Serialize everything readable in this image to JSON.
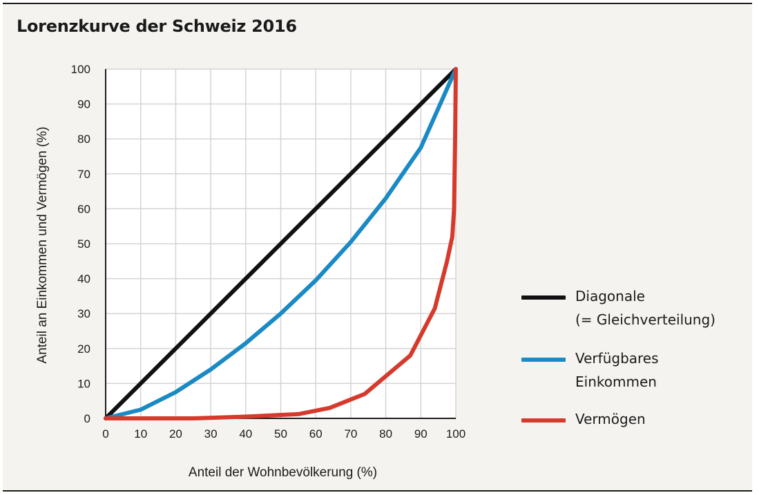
{
  "title": "Lorenzkurve der Schweiz 2016",
  "chart_data": {
    "type": "line",
    "xlabel": "Anteil der Wohnbevölkerung (%)",
    "ylabel": "Anteil an Einkommen und Vermögen (%)",
    "xlim": [
      0,
      100
    ],
    "ylim": [
      0,
      100
    ],
    "x_ticks": [
      "0",
      "10",
      "20",
      "30",
      "40",
      "50",
      "60",
      "70",
      "80",
      "90",
      "100"
    ],
    "y_ticks": [
      "0",
      "10",
      "20",
      "30",
      "40",
      "50",
      "60",
      "70",
      "80",
      "90",
      "100"
    ],
    "grid": true,
    "legend_position": "right",
    "series": [
      {
        "name": "Diagonale (= Gleichverteilung)",
        "name_lines": [
          "Diagonale",
          "(= Gleichverteilung)"
        ],
        "color": "#111111",
        "points": [
          [
            0,
            0
          ],
          [
            100,
            100
          ]
        ]
      },
      {
        "name": "Verfügbares Einkommen",
        "name_lines": [
          "Verfügbares",
          "Einkommen"
        ],
        "color": "#1a8ac4",
        "points": [
          [
            0,
            0
          ],
          [
            10,
            2.5
          ],
          [
            20,
            7.5
          ],
          [
            30,
            14
          ],
          [
            40,
            21.5
          ],
          [
            50,
            30
          ],
          [
            60,
            39.5
          ],
          [
            70,
            50.5
          ],
          [
            80,
            63
          ],
          [
            90,
            77.5
          ],
          [
            100,
            100
          ]
        ]
      },
      {
        "name": "Vermögen",
        "name_lines": [
          "Vermögen"
        ],
        "color": "#d63a2c",
        "points": [
          [
            0,
            0
          ],
          [
            25,
            0
          ],
          [
            40,
            0.5
          ],
          [
            55,
            1.2
          ],
          [
            64,
            3
          ],
          [
            74,
            7
          ],
          [
            87,
            18
          ],
          [
            94,
            31.5
          ],
          [
            97.5,
            45
          ],
          [
            99,
            52
          ],
          [
            99.5,
            60
          ],
          [
            99.8,
            80
          ],
          [
            100,
            100
          ]
        ]
      }
    ]
  }
}
